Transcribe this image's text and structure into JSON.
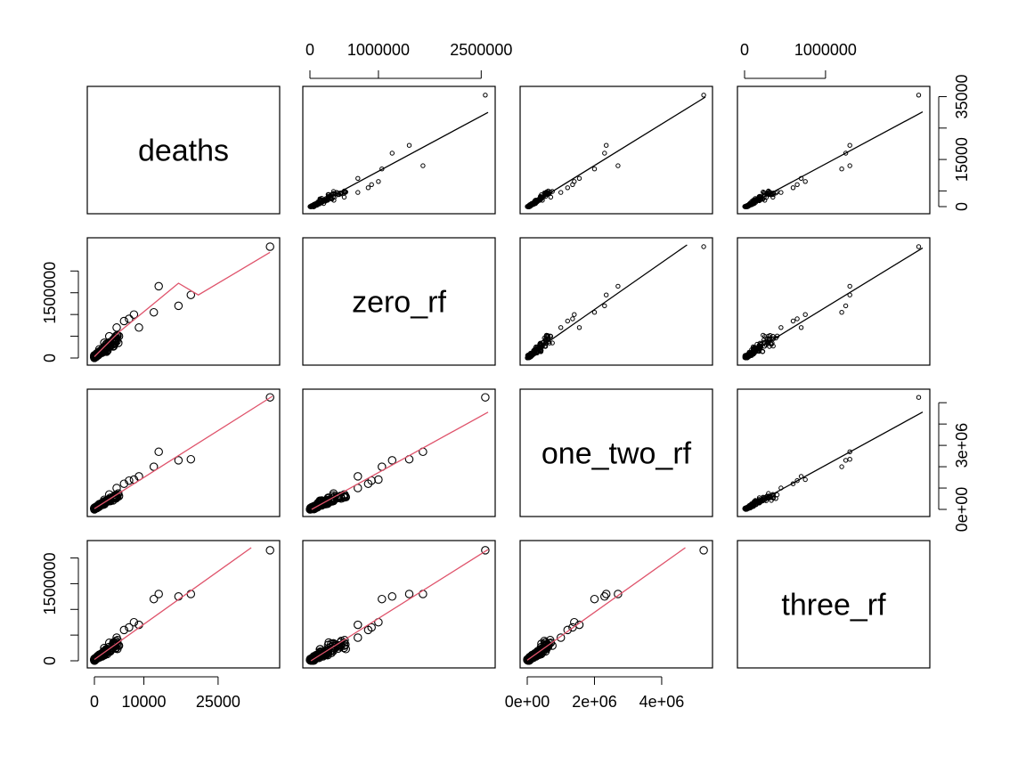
{
  "chart_data": {
    "type": "scatter",
    "kind": "pairs scatterplot matrix",
    "variables": [
      "deaths",
      "zero_rf",
      "one_two_rf",
      "three_rf"
    ],
    "diagonal_labels": [
      "deaths",
      "zero_rf",
      "one_two_rf",
      "three_rf"
    ],
    "upper_panels": "scatter with straight regression line",
    "lower_panels": "scatter with smoothed red curve",
    "fit_colors": {
      "upper": "#000000",
      "lower": "#DF536B"
    },
    "axis_ticks": {
      "deaths": {
        "values": [
          0,
          10000,
          25000
        ],
        "labels": [
          "0",
          "10000",
          "25000"
        ],
        "side": "bottom"
      },
      "zero_rf": {
        "values": [
          0,
          1000000,
          2500000
        ],
        "labels": [
          "0",
          "1000000",
          "2500000"
        ],
        "side": "top"
      },
      "three_rf": {
        "values": [
          0,
          1000000
        ],
        "labels": [
          "0",
          "1000000"
        ],
        "side": "top"
      },
      "deaths_right": {
        "values": [
          0,
          5000,
          15000,
          25000,
          35000
        ],
        "labels": [
          "0",
          "",
          "15000",
          "",
          "35000"
        ],
        "side": "right"
      },
      "zero_rf_left": {
        "values": [
          0,
          500000,
          1000000,
          1500000,
          2000000
        ],
        "labels": [
          "0",
          "",
          "",
          "1500000",
          ""
        ],
        "side": "left"
      },
      "one_two_rf_right": {
        "values": [
          0,
          1000000,
          2000000,
          3000000,
          4000000,
          5000000
        ],
        "labels": [
          "0e+00",
          "",
          "",
          "3e+06",
          "",
          ""
        ],
        "side": "right"
      },
      "three_rf_left": {
        "values": [
          0,
          500000,
          1000000,
          1500000,
          2000000
        ],
        "labels": [
          "0",
          "",
          "",
          "1500000",
          ""
        ],
        "side": "left"
      },
      "one_two_rf_bottom": {
        "values": [
          0,
          2000000,
          4000000
        ],
        "labels": [
          "0e+00",
          "2e+06",
          "4e+06"
        ],
        "side": "bottom"
      }
    },
    "ranges": {
      "deaths": [
        0,
        36000
      ],
      "zero_rf": [
        0,
        2600000
      ],
      "one_two_rf": [
        0,
        5300000
      ],
      "three_rf": [
        0,
        2200000
      ]
    },
    "key_points": [
      {
        "deaths": 35500,
        "zero_rf": 2560000,
        "one_two_rf": 5250000,
        "three_rf": 2150000
      },
      {
        "deaths": 19500,
        "zero_rf": 1450000,
        "one_two_rf": 2350000,
        "three_rf": 1300000
      },
      {
        "deaths": 17000,
        "zero_rf": 1200000,
        "one_two_rf": 2300000,
        "three_rf": 1250000
      },
      {
        "deaths": 12000,
        "zero_rf": 1050000,
        "one_two_rf": 2000000,
        "three_rf": 1200000
      },
      {
        "deaths": 13000,
        "zero_rf": 1650000,
        "one_two_rf": 2700000,
        "three_rf": 1300000
      },
      {
        "deaths": 9000,
        "zero_rf": 700000,
        "one_two_rf": 1550000,
        "three_rf": 700000
      },
      {
        "deaths": 8000,
        "zero_rf": 1000000,
        "one_two_rf": 1400000,
        "three_rf": 750000
      },
      {
        "deaths": 7000,
        "zero_rf": 900000,
        "one_two_rf": 1350000,
        "three_rf": 650000
      },
      {
        "deaths": 6000,
        "zero_rf": 850000,
        "one_two_rf": 1200000,
        "three_rf": 600000
      },
      {
        "deaths": 4500,
        "zero_rf": 700000,
        "one_two_rf": 1000000,
        "three_rf": 450000
      },
      {
        "deaths": 3000,
        "zero_rf": 500000,
        "one_two_rf": 700000,
        "three_rf": 350000
      },
      {
        "deaths": 2000,
        "zero_rf": 350000,
        "one_two_rf": 450000,
        "three_rf": 250000
      },
      {
        "deaths": 1000,
        "zero_rf": 200000,
        "one_two_rf": 250000,
        "three_rf": 120000
      },
      {
        "deaths": 500,
        "zero_rf": 100000,
        "one_two_rf": 120000,
        "three_rf": 60000
      }
    ]
  }
}
